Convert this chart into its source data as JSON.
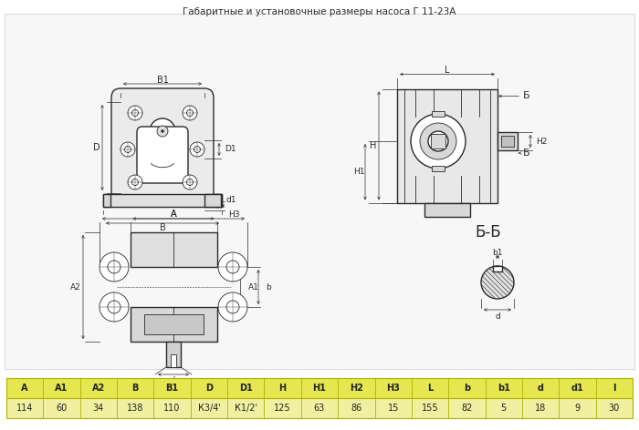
{
  "title": "Габаритные и установочные размеры насоса Г 11-23А",
  "bg_color": "#ffffff",
  "line_color": "#2a2a2a",
  "table_header_bg": "#e6e650",
  "table_values_bg": "#f0f0a0",
  "table_border": "#b0b000",
  "table_headers": [
    "A",
    "A1",
    "A2",
    "B",
    "B1",
    "D",
    "D1",
    "H",
    "H1",
    "H2",
    "H3",
    "L",
    "b",
    "b1",
    "d",
    "d1",
    "l"
  ],
  "table_values": [
    "114",
    "60",
    "34",
    "138",
    "110",
    "К3/4'",
    "К1/2'",
    "125",
    "63",
    "86",
    "15",
    "155",
    "82",
    "5",
    "18",
    "9",
    "30"
  ],
  "title_fontsize": 7.5,
  "table_fontsize": 7
}
